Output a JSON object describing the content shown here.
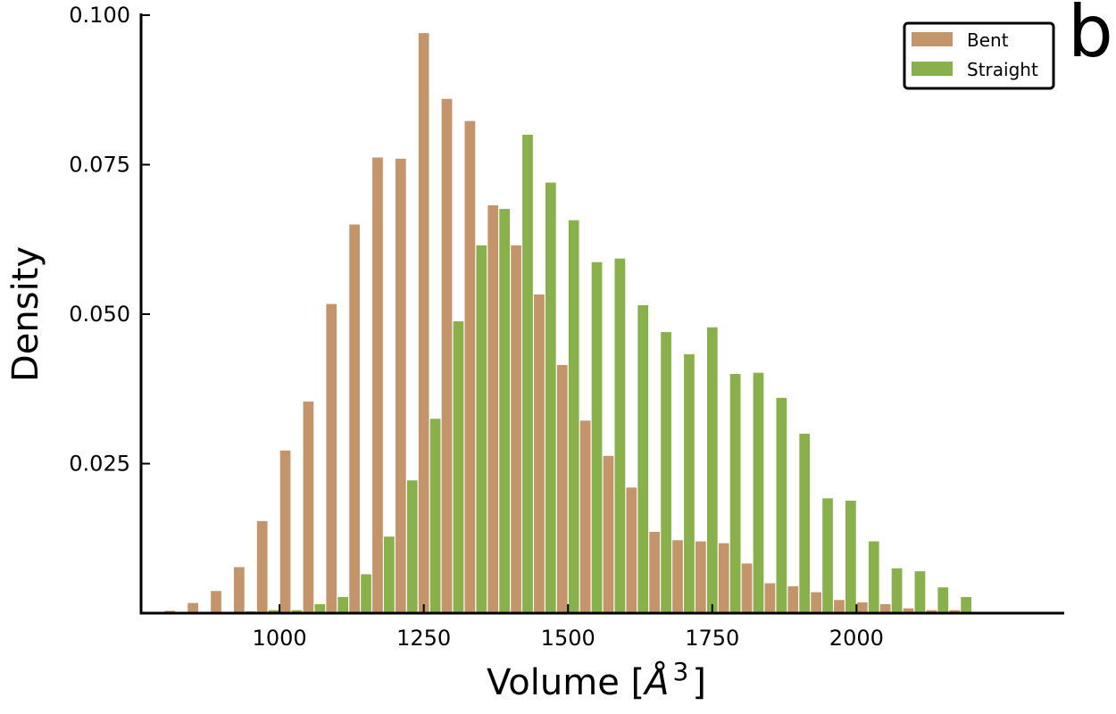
{
  "panel_label": "b",
  "chart_data": {
    "type": "bar",
    "title": "",
    "xlabel": "Volume [Å³]",
    "xlabel_main": "Volume [",
    "xlabel_symbol": "Å",
    "xlabel_exp": "3",
    "xlabel_close": "]",
    "ylabel": "Density",
    "xlim": [
      760,
      2360
    ],
    "ylim": [
      0,
      0.1
    ],
    "xticks": [
      1000,
      1250,
      1500,
      1750,
      2000
    ],
    "xtick_labels": [
      "1000",
      "1250",
      "1500",
      "1750",
      "2000"
    ],
    "yticks": [
      0,
      0.025,
      0.05,
      0.075,
      0.1
    ],
    "ytick_labels": [
      "0.025",
      "0.050",
      "0.075",
      "0.100"
    ],
    "grid": false,
    "legend_position": "top-right",
    "bin_width": 40,
    "bin_starts": [
      800,
      840,
      880,
      920,
      960,
      1000,
      1040,
      1080,
      1120,
      1160,
      1200,
      1240,
      1280,
      1320,
      1360,
      1400,
      1440,
      1480,
      1520,
      1560,
      1600,
      1640,
      1680,
      1720,
      1760,
      1800,
      1840,
      1880,
      1920,
      1960,
      2000,
      2040,
      2080,
      2120,
      2160,
      2200
    ],
    "series": [
      {
        "name": "Bent",
        "color": "#c4956a",
        "values": [
          0.0004,
          0.0017,
          0.0037,
          0.0077,
          0.0154,
          0.0272,
          0.0354,
          0.0517,
          0.065,
          0.0762,
          0.076,
          0.097,
          0.086,
          0.0823,
          0.0682,
          0.0615,
          0.0533,
          0.0415,
          0.0322,
          0.0263,
          0.021,
          0.0136,
          0.0122,
          0.012,
          0.0117,
          0.0083,
          0.005,
          0.0045,
          0.0035,
          0.0022,
          0.0018,
          0.0015,
          0.0008,
          0.0005,
          0.0005,
          0.0
        ]
      },
      {
        "name": "Straight",
        "color": "#88b04b",
        "values": [
          0.0,
          0.0,
          0.0,
          0.0003,
          0.0005,
          0.0005,
          0.0015,
          0.0027,
          0.0065,
          0.0128,
          0.0222,
          0.0325,
          0.0488,
          0.0615,
          0.0676,
          0.08,
          0.072,
          0.0657,
          0.0587,
          0.0593,
          0.0515,
          0.047,
          0.0433,
          0.0478,
          0.04,
          0.0402,
          0.036,
          0.03,
          0.0192,
          0.0188,
          0.012,
          0.0075,
          0.007,
          0.0043,
          0.0027,
          0.0
        ]
      }
    ]
  }
}
